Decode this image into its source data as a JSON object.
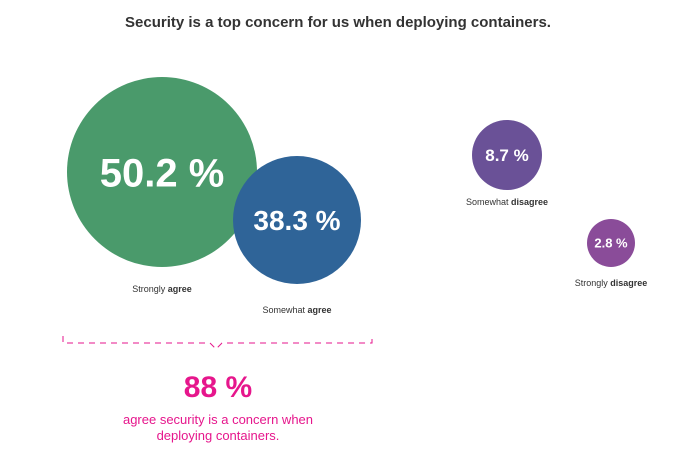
{
  "chart_data": {
    "type": "bubble",
    "title": "Security is a top concern for us when deploying containers.",
    "categories": [
      {
        "value_label": "50.2 %",
        "label_plain": "Strongly ",
        "label_bold": "agree",
        "value": 50.2,
        "color": "#4a9a6b"
      },
      {
        "value_label": "38.3 %",
        "label_plain": "Somewhat ",
        "label_bold": "agree",
        "value": 38.3,
        "color": "#2f6498"
      },
      {
        "value_label": "8.7 %",
        "label_plain": "Somewhat ",
        "label_bold": "disagree",
        "value": 8.7,
        "color": "#6a5197"
      },
      {
        "value_label": "2.8 %",
        "label_plain": "Strongly ",
        "label_bold": "disagree",
        "value": 2.8,
        "color": "#8a4c99"
      }
    ],
    "summary": {
      "value": "88 %",
      "line1": "agree security is a concern when",
      "line2": "deploying containers.",
      "color": "#e6168c"
    }
  }
}
